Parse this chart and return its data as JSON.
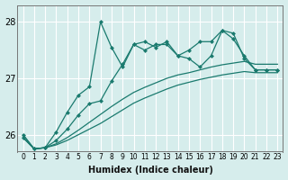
{
  "xlabel": "Humidex (Indice chaleur)",
  "bg_color": "#d6edec",
  "line_color": "#1a7a6e",
  "grid_color": "#ffffff",
  "ylim": [
    25.7,
    28.3
  ],
  "xlim": [
    -0.5,
    23.5
  ],
  "yticks": [
    26,
    27,
    28
  ],
  "xticks": [
    0,
    1,
    2,
    3,
    4,
    5,
    6,
    7,
    8,
    9,
    10,
    11,
    12,
    13,
    14,
    15,
    16,
    17,
    18,
    19,
    20,
    21,
    22,
    23
  ],
  "straight1": [
    25.95,
    25.75,
    25.77,
    25.82,
    25.9,
    26.0,
    26.1,
    26.2,
    26.32,
    26.44,
    26.56,
    26.65,
    26.73,
    26.81,
    26.88,
    26.93,
    26.98,
    27.02,
    27.06,
    27.09,
    27.12,
    27.1,
    27.1,
    27.1
  ],
  "straight2": [
    26.0,
    25.75,
    25.77,
    25.84,
    25.95,
    26.08,
    26.22,
    26.36,
    26.5,
    26.63,
    26.75,
    26.84,
    26.92,
    27.0,
    27.06,
    27.1,
    27.15,
    27.2,
    27.24,
    27.27,
    27.3,
    27.25,
    27.25,
    27.25
  ],
  "wiggly1_y": [
    25.95,
    25.75,
    25.77,
    25.9,
    26.1,
    26.35,
    26.55,
    26.6,
    26.95,
    27.25,
    27.6,
    27.5,
    27.6,
    27.6,
    27.4,
    27.35,
    27.2,
    27.4,
    27.85,
    27.8,
    27.35,
    27.15,
    27.15,
    27.15
  ],
  "wiggly2_y": [
    26.0,
    25.75,
    25.77,
    26.05,
    26.4,
    26.7,
    26.85,
    28.0,
    27.55,
    27.2,
    27.6,
    27.65,
    27.55,
    27.65,
    27.4,
    27.5,
    27.65,
    27.65,
    27.85,
    27.7,
    27.4,
    27.15,
    27.15,
    27.15
  ]
}
